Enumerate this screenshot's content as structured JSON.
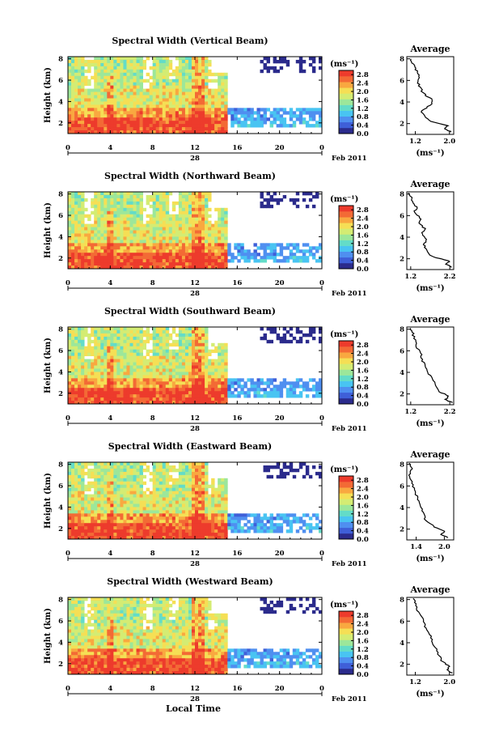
{
  "figure": {
    "xlabel": "Local Time",
    "date_label": "Feb 2011",
    "date_marker": "28"
  },
  "colors": {
    "cmap": [
      "#2b2b8c",
      "#3f5fd8",
      "#4f8ff0",
      "#49c4f2",
      "#63dcc8",
      "#9ce79a",
      "#d4ec73",
      "#f5df55",
      "#f9a840",
      "#f36a35",
      "#ed3b2c"
    ]
  },
  "chart_data": [
    {
      "type": "heatmap",
      "title": "Spectral Width (Vertical Beam)",
      "ylabel": "Height (km)",
      "unit_label": "(ms⁻¹)",
      "x_ticks": [
        "0",
        "4",
        "8",
        "12",
        "16",
        "20",
        "0"
      ],
      "xlim": [
        0,
        24
      ],
      "y_ticks": [
        "2",
        "4",
        "6",
        "8"
      ],
      "ylim": [
        1,
        8.2
      ],
      "colorbar_ticks": [
        "0.0",
        "0.4",
        "0.8",
        "1.2",
        "1.6",
        "2.0",
        "2.4",
        "2.8"
      ],
      "clim": [
        0,
        3
      ],
      "average": {
        "title": "Average",
        "xlabel": "(ms⁻¹)",
        "x_ticks": [
          "1.2",
          "2.0"
        ],
        "xlim": [
          1.0,
          2.1
        ],
        "y_ticks": [
          "2",
          "4",
          "6",
          "8"
        ],
        "ylim": [
          1,
          8.2
        ],
        "profile": [
          [
            2.05,
            1.2
          ],
          [
            1.9,
            1.5
          ],
          [
            1.95,
            1.8
          ],
          [
            1.55,
            2.2
          ],
          [
            1.4,
            2.7
          ],
          [
            1.35,
            3.2
          ],
          [
            1.55,
            3.7
          ],
          [
            1.6,
            4.2
          ],
          [
            1.45,
            4.6
          ],
          [
            1.35,
            5.0
          ],
          [
            1.3,
            5.5
          ],
          [
            1.25,
            6.0
          ],
          [
            1.3,
            6.5
          ],
          [
            1.2,
            7.0
          ],
          [
            1.15,
            7.5
          ],
          [
            1.1,
            8.0
          ]
        ]
      }
    },
    {
      "type": "heatmap",
      "title": "Spectral Width (Northward Beam)",
      "ylabel": "Height (km)",
      "unit_label": "(ms⁻¹)",
      "x_ticks": [
        "0",
        "4",
        "8",
        "12",
        "16",
        "20",
        "0"
      ],
      "xlim": [
        0,
        24
      ],
      "y_ticks": [
        "2",
        "4",
        "6",
        "8"
      ],
      "ylim": [
        1,
        8.2
      ],
      "colorbar_ticks": [
        "0.0",
        "0.4",
        "0.8",
        "1.2",
        "1.6",
        "2.0",
        "2.4",
        "2.8"
      ],
      "clim": [
        0,
        3
      ],
      "average": {
        "title": "Average",
        "xlabel": "(ms⁻¹)",
        "x_ticks": [
          "1.2",
          "2.2"
        ],
        "xlim": [
          1.1,
          2.3
        ],
        "y_ticks": [
          "2",
          "4",
          "6",
          "8"
        ],
        "ylim": [
          1,
          8.2
        ],
        "profile": [
          [
            2.25,
            1.2
          ],
          [
            2.1,
            1.5
          ],
          [
            2.2,
            1.8
          ],
          [
            1.75,
            2.2
          ],
          [
            1.6,
            2.8
          ],
          [
            1.55,
            3.3
          ],
          [
            1.6,
            3.8
          ],
          [
            1.5,
            4.3
          ],
          [
            1.55,
            4.8
          ],
          [
            1.4,
            5.3
          ],
          [
            1.45,
            5.8
          ],
          [
            1.3,
            6.3
          ],
          [
            1.35,
            6.8
          ],
          [
            1.25,
            7.3
          ],
          [
            1.2,
            7.8
          ],
          [
            1.15,
            8.1
          ]
        ]
      }
    },
    {
      "type": "heatmap",
      "title": "Spectral Width (Southward Beam)",
      "ylabel": "Height (km)",
      "unit_label": "(ms⁻¹)",
      "x_ticks": [
        "0",
        "4",
        "8",
        "12",
        "16",
        "20",
        "0"
      ],
      "xlim": [
        0,
        24
      ],
      "y_ticks": [
        "2",
        "4",
        "6",
        "8"
      ],
      "ylim": [
        1,
        8.2
      ],
      "colorbar_ticks": [
        "0.0",
        "0.4",
        "0.8",
        "1.2",
        "1.6",
        "2.0",
        "2.4",
        "2.8"
      ],
      "clim": [
        0,
        3
      ],
      "average": {
        "title": "Average",
        "xlabel": "(ms⁻¹)",
        "x_ticks": [
          "1.2",
          "2.2"
        ],
        "xlim": [
          1.1,
          2.3
        ],
        "y_ticks": [
          "2",
          "4",
          "6",
          "8"
        ],
        "ylim": [
          1,
          8.2
        ],
        "profile": [
          [
            2.25,
            1.2
          ],
          [
            2.1,
            1.5
          ],
          [
            2.15,
            1.8
          ],
          [
            1.95,
            2.2
          ],
          [
            1.85,
            2.8
          ],
          [
            1.75,
            3.4
          ],
          [
            1.65,
            4.0
          ],
          [
            1.55,
            4.6
          ],
          [
            1.5,
            5.2
          ],
          [
            1.45,
            5.8
          ],
          [
            1.35,
            6.4
          ],
          [
            1.3,
            7.0
          ],
          [
            1.25,
            7.6
          ],
          [
            1.2,
            8.1
          ]
        ]
      }
    },
    {
      "type": "heatmap",
      "title": "Spectral Width (Eastward Beam)",
      "ylabel": "Height (km)",
      "unit_label": "(ms⁻¹)",
      "x_ticks": [
        "0",
        "4",
        "8",
        "12",
        "16",
        "20",
        "0"
      ],
      "xlim": [
        0,
        24
      ],
      "y_ticks": [
        "2",
        "4",
        "6",
        "8"
      ],
      "ylim": [
        1,
        8.2
      ],
      "colorbar_ticks": [
        "0.0",
        "0.4",
        "0.8",
        "1.2",
        "1.6",
        "2.0",
        "2.4",
        "2.8"
      ],
      "clim": [
        0,
        3
      ],
      "average": {
        "title": "Average",
        "xlabel": "(ms⁻¹)",
        "x_ticks": [
          "1.4",
          "2.0"
        ],
        "xlim": [
          1.2,
          2.2
        ],
        "y_ticks": [
          "2",
          "4",
          "6",
          "8"
        ],
        "ylim": [
          1,
          8.2
        ],
        "profile": [
          [
            2.1,
            1.2
          ],
          [
            1.95,
            1.5
          ],
          [
            2.0,
            1.8
          ],
          [
            1.8,
            2.2
          ],
          [
            1.6,
            2.8
          ],
          [
            1.55,
            3.4
          ],
          [
            1.5,
            4.0
          ],
          [
            1.45,
            4.6
          ],
          [
            1.4,
            5.2
          ],
          [
            1.35,
            5.8
          ],
          [
            1.3,
            6.4
          ],
          [
            1.25,
            7.0
          ],
          [
            1.3,
            7.6
          ],
          [
            1.25,
            8.1
          ]
        ]
      }
    },
    {
      "type": "heatmap",
      "title": "Spectral Width (Westward Beam)",
      "ylabel": "Height (km)",
      "unit_label": "(ms⁻¹)",
      "x_ticks": [
        "0",
        "4",
        "8",
        "12",
        "16",
        "20",
        "0"
      ],
      "xlim": [
        0,
        24
      ],
      "y_ticks": [
        "2",
        "4",
        "6",
        "8"
      ],
      "ylim": [
        1,
        8.2
      ],
      "colorbar_ticks": [
        "0.0",
        "0.4",
        "0.8",
        "1.2",
        "1.6",
        "2.0",
        "2.4",
        "2.8"
      ],
      "clim": [
        0,
        3
      ],
      "average": {
        "title": "Average",
        "xlabel": "(ms⁻¹)",
        "x_ticks": [
          "1.2",
          "2.0"
        ],
        "xlim": [
          1.0,
          2.1
        ],
        "y_ticks": [
          "2",
          "4",
          "6",
          "8"
        ],
        "ylim": [
          1,
          8.2
        ],
        "profile": [
          [
            2.05,
            1.2
          ],
          [
            1.95,
            1.5
          ],
          [
            2.0,
            1.8
          ],
          [
            1.85,
            2.2
          ],
          [
            1.75,
            2.8
          ],
          [
            1.7,
            3.4
          ],
          [
            1.6,
            4.0
          ],
          [
            1.55,
            4.6
          ],
          [
            1.45,
            5.2
          ],
          [
            1.4,
            5.8
          ],
          [
            1.35,
            6.4
          ],
          [
            1.25,
            7.0
          ],
          [
            1.2,
            7.6
          ],
          [
            1.15,
            8.1
          ]
        ]
      }
    }
  ]
}
